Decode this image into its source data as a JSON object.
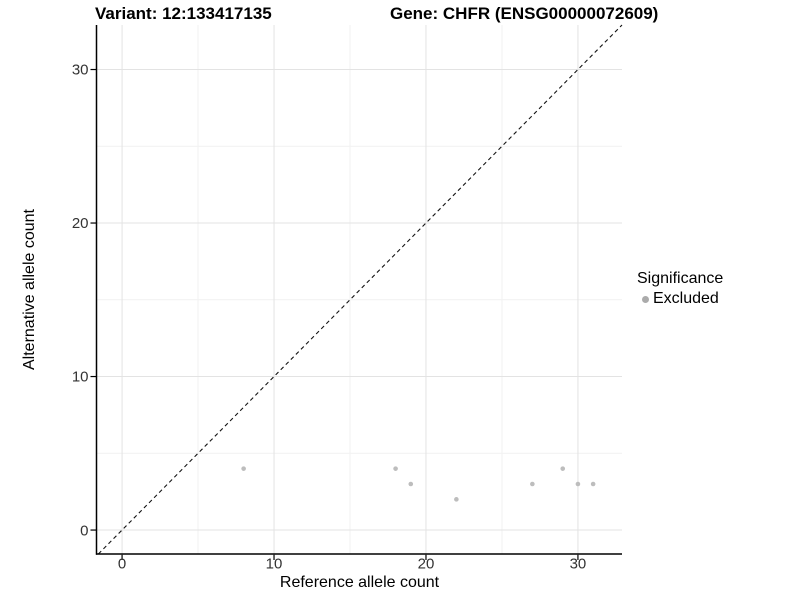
{
  "titles": {
    "variant": "Variant: 12:133417135",
    "gene": "Gene: CHFR (ENSG00000072609)"
  },
  "legend": {
    "title": "Significance",
    "items": [
      {
        "label": "Excluded",
        "color": "#ababab",
        "marker": "circle"
      }
    ]
  },
  "chart_data": {
    "type": "scatter",
    "title_left": "Variant: 12:133417135",
    "title_right": "Gene: CHFR (ENSG00000072609)",
    "xlabel": "Reference allele count",
    "ylabel": "Alternative allele count",
    "xlim": [
      -1.65,
      32.9
    ],
    "ylim": [
      -1.56,
      32.9
    ],
    "xticks": [
      0,
      10,
      20,
      30
    ],
    "yticks": [
      0,
      10,
      20,
      30
    ],
    "xticks_minor": [
      5,
      15,
      25
    ],
    "yticks_minor": [
      5,
      15,
      25
    ],
    "grid": true,
    "legend_position": "right",
    "series": [
      {
        "name": "Excluded",
        "color": "#bdbdbd",
        "marker": "circle",
        "points": [
          [
            8,
            4
          ],
          [
            18,
            4
          ],
          [
            19,
            3
          ],
          [
            22,
            2
          ],
          [
            27,
            3
          ],
          [
            29,
            4
          ],
          [
            30,
            3
          ],
          [
            31,
            3
          ]
        ]
      }
    ],
    "reference_line": {
      "type": "identity",
      "style": "dashed",
      "color": "#141414"
    }
  },
  "colors": {
    "axis_line": "#000000",
    "tick_label": "#333333",
    "grid_major": "#e3e3e3",
    "grid_minor": "#f1f1f1",
    "background": "#ffffff"
  }
}
